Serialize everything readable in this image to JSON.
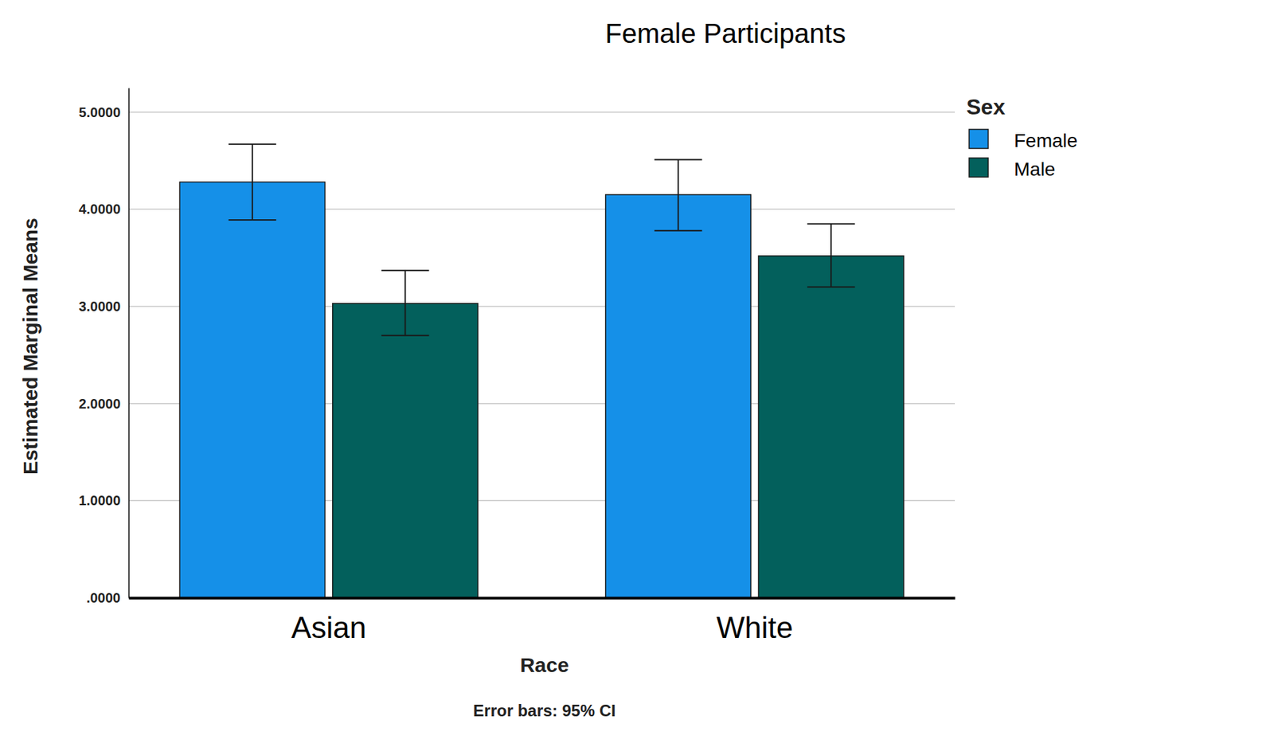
{
  "chart_data": {
    "type": "bar",
    "title": "Female Participants",
    "x_label": "Race",
    "y_label": "Estimated Marginal Means",
    "legend_title": "Sex",
    "annotations": [
      "Error bars: 95% CI"
    ],
    "categories": [
      "Asian",
      "White"
    ],
    "series": [
      {
        "name": "Female",
        "color": "#1590e8",
        "values": [
          4.28,
          4.15
        ],
        "ci_low": [
          3.89,
          3.78
        ],
        "ci_high": [
          4.67,
          4.51
        ]
      },
      {
        "name": "Male",
        "color": "#03605c",
        "values": [
          3.03,
          3.52
        ],
        "ci_low": [
          2.7,
          3.2
        ],
        "ci_high": [
          3.37,
          3.85
        ]
      }
    ],
    "ylim": [
      0,
      5.25
    ],
    "yticks": [
      {
        "value": 0,
        "label": ".0000"
      },
      {
        "value": 1,
        "label": "1.0000"
      },
      {
        "value": 2,
        "label": "2.0000"
      },
      {
        "value": 3,
        "label": "3.0000"
      },
      {
        "value": 4,
        "label": "4.0000"
      },
      {
        "value": 5,
        "label": "5.0000"
      }
    ],
    "grid": true,
    "legend": "upper right"
  }
}
